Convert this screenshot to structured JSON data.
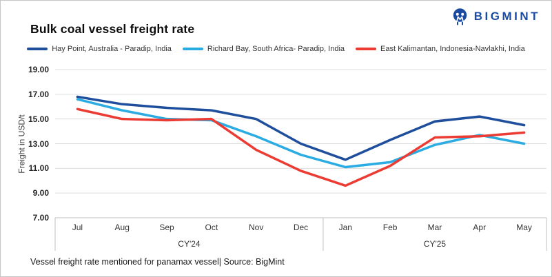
{
  "header": {
    "brand": "BIGMINT",
    "brand_color": "#1B4BA0"
  },
  "footer": {
    "note": "Vessel freight rate mentioned for panamax vessel| Source: BigMint"
  },
  "colors": {
    "grid": "#dcdcdc",
    "axis": "#bfbfbf",
    "series_dark_blue": "#1E4E9C",
    "series_cyan": "#2AACE3",
    "series_red": "#EB3B32"
  },
  "chart_data": {
    "type": "line",
    "title": "Bulk coal vessel freight rate",
    "xlabel": "",
    "ylabel": "Freight in USD/t",
    "ylim": [
      7,
      19
    ],
    "ytick_step": 2,
    "grid": true,
    "legend_position": "top",
    "categories": [
      "Jul",
      "Aug",
      "Sep",
      "Oct",
      "Nov",
      "Dec",
      "Jan",
      "Feb",
      "Mar",
      "Apr",
      "May"
    ],
    "category_groups": [
      {
        "label": "CY'24",
        "span": 6
      },
      {
        "label": "CY'25",
        "span": 5
      }
    ],
    "series": [
      {
        "name": "Hay Point, Australia - Paradip, India",
        "color": "#1E4E9C",
        "values": [
          16.8,
          16.2,
          15.9,
          15.7,
          15.0,
          13.0,
          11.7,
          13.3,
          14.8,
          15.2,
          14.5
        ]
      },
      {
        "name": "Richard Bay, South Africa- Paradip, India",
        "color": "#2AACE3",
        "values": [
          16.6,
          15.7,
          15.0,
          14.9,
          13.6,
          12.1,
          11.1,
          11.5,
          12.9,
          13.7,
          13.0
        ]
      },
      {
        "name": "East Kalimantan, Indonesia-Navlakhi, India",
        "color": "#EB3B32",
        "values": [
          15.8,
          15.0,
          14.9,
          15.0,
          12.5,
          10.8,
          9.6,
          11.2,
          13.5,
          13.6,
          13.9
        ]
      }
    ]
  }
}
